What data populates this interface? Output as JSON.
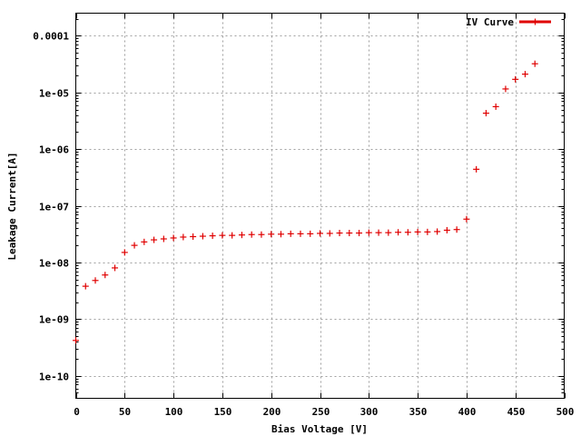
{
  "chart_data": {
    "type": "scatter",
    "xlabel": "Bias Voltage [V]",
    "ylabel": "Leakage Current[A]",
    "xlim": [
      0,
      500
    ],
    "ylim": [
      4e-11,
      0.00025
    ],
    "yscale": "log",
    "grid": true,
    "legend_position": "top-right",
    "x_ticks": [
      0,
      50,
      100,
      150,
      200,
      250,
      300,
      350,
      400,
      450,
      500
    ],
    "x_tick_labels": [
      "0",
      "50",
      "100",
      "150",
      "200",
      "250",
      "300",
      "350",
      "400",
      "450",
      "500"
    ],
    "y_ticks": [
      1e-10,
      1e-09,
      1e-08,
      1e-07,
      1e-06,
      1e-05,
      0.0001
    ],
    "y_tick_labels": [
      "1e-10",
      "1e-09",
      "1e-08",
      "1e-07",
      "1e-06",
      "1e-05",
      "0.0001"
    ],
    "series": [
      {
        "name": "IV Curve",
        "color": "#e00000",
        "marker": "plus",
        "x": [
          0,
          10,
          20,
          30,
          40,
          50,
          60,
          70,
          80,
          90,
          100,
          110,
          120,
          130,
          140,
          150,
          160,
          170,
          180,
          190,
          200,
          210,
          220,
          230,
          240,
          250,
          260,
          270,
          280,
          290,
          300,
          310,
          320,
          330,
          340,
          350,
          360,
          370,
          380,
          390,
          400,
          410,
          420,
          430,
          440,
          450,
          460,
          470
        ],
        "y": [
          4.2e-10,
          3.8e-09,
          4.8e-09,
          6e-09,
          8e-09,
          1.5e-08,
          2e-08,
          2.3e-08,
          2.5e-08,
          2.6e-08,
          2.7e-08,
          2.8e-08,
          2.85e-08,
          2.9e-08,
          2.95e-08,
          3e-08,
          3e-08,
          3.05e-08,
          3.1e-08,
          3.1e-08,
          3.15e-08,
          3.15e-08,
          3.2e-08,
          3.2e-08,
          3.2e-08,
          3.25e-08,
          3.25e-08,
          3.3e-08,
          3.3e-08,
          3.3e-08,
          3.35e-08,
          3.35e-08,
          3.35e-08,
          3.4e-08,
          3.4e-08,
          3.45e-08,
          3.45e-08,
          3.5e-08,
          3.7e-08,
          3.8e-08,
          5.8e-08,
          4.4e-07,
          4.3e-06,
          5.6e-06,
          1.15e-05,
          1.7e-05,
          2.1e-05,
          3.2e-05
        ]
      }
    ]
  }
}
